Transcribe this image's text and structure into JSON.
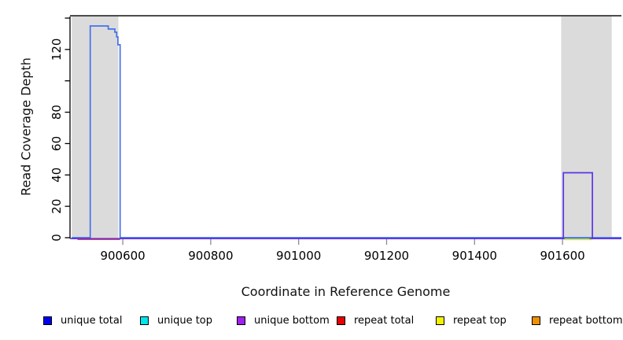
{
  "chart_data": {
    "type": "line",
    "title": "",
    "xlabel": "Coordinate in Reference Genome",
    "ylabel": "Read Coverage Depth",
    "xlim": [
      900480,
      901734
    ],
    "ylim": [
      0,
      141
    ],
    "grid": false,
    "x_ticks": [
      {
        "value": 900600,
        "label": "900600"
      },
      {
        "value": 900800,
        "label": "900800"
      },
      {
        "value": 901000,
        "label": "901000"
      },
      {
        "value": 901200,
        "label": "901200"
      },
      {
        "value": 901400,
        "label": "901400"
      },
      {
        "value": 901600,
        "label": "901600"
      }
    ],
    "y_ticks": [
      {
        "value": 0,
        "label": "0"
      },
      {
        "value": 20,
        "label": "20"
      },
      {
        "value": 40,
        "label": "40"
      },
      {
        "value": 60,
        "label": "60"
      },
      {
        "value": 80,
        "label": "80"
      },
      {
        "value": 100,
        "label": ""
      },
      {
        "value": 120,
        "label": "120"
      },
      {
        "value": 140,
        "label": ""
      }
    ],
    "shaded_regions": [
      {
        "x0": 900484,
        "x1": 900590,
        "color": "#dbdbdb"
      },
      {
        "x0": 901597,
        "x1": 901712,
        "color": "#dbdbdb"
      }
    ],
    "top_rule": {
      "value": 141,
      "color": "#4d4d4d"
    },
    "series": [
      {
        "key": "red",
        "name": "repeat total baseline",
        "color": "#ee4444",
        "points": [
          [
            900497,
            0
          ],
          [
            900594,
            0
          ]
        ]
      },
      {
        "key": "yellow",
        "name": "repeat top baseline",
        "color": "#e8e26a",
        "points": [
          [
            901603,
            0
          ],
          [
            901668,
            0
          ]
        ]
      },
      {
        "key": "green",
        "name": "overlap baseline segment",
        "color": "#7ecb7e",
        "points": [
          [
            901605,
            0
          ],
          [
            901661,
            0
          ]
        ]
      },
      {
        "key": "blue",
        "name": "unique total coverage",
        "color": "#4671ec",
        "points": [
          [
            900484,
            0
          ],
          [
            900526,
            0
          ],
          [
            900526,
            135
          ],
          [
            900567,
            135
          ],
          [
            900567,
            133
          ],
          [
            900582,
            133
          ],
          [
            900582,
            131
          ],
          [
            900586,
            131
          ],
          [
            900586,
            128
          ],
          [
            900589,
            128
          ],
          [
            900589,
            123
          ],
          [
            900594,
            123
          ],
          [
            900594,
            0
          ],
          [
            901734,
            0
          ]
        ]
      },
      {
        "key": "purple",
        "name": "unique bottom coverage",
        "color": "#5c33e6",
        "points": [
          [
            900482,
            0
          ],
          [
            901602,
            0
          ],
          [
            901602,
            42
          ],
          [
            901668,
            42
          ],
          [
            901668,
            0
          ],
          [
            901734,
            0
          ]
        ]
      }
    ],
    "legend": [
      {
        "label": "unique total",
        "color": "#0000ee"
      },
      {
        "label": "unique top",
        "color": "#00e5ee"
      },
      {
        "label": "unique bottom",
        "color": "#a020f0"
      },
      {
        "label": "repeat total",
        "color": "#e60000"
      },
      {
        "label": "repeat top",
        "color": "#f2f200"
      },
      {
        "label": "repeat bottom",
        "color": "#f09000"
      }
    ],
    "legend_position": "bottom"
  }
}
